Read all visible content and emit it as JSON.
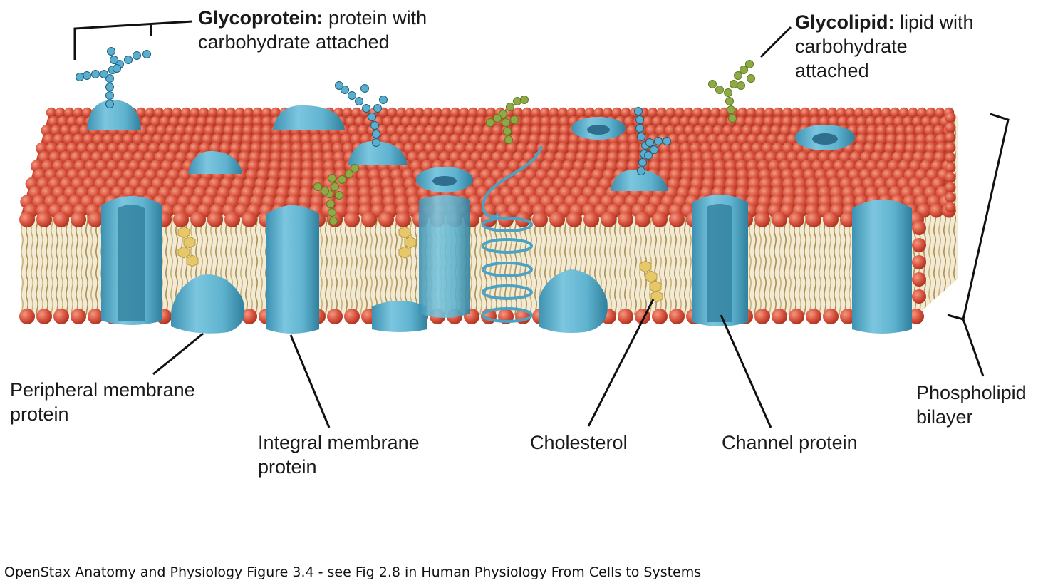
{
  "labels": {
    "glycoprotein": {
      "term": "Glycoprotein:",
      "desc_line1": "protein with",
      "desc_line2": "carbohydrate attached"
    },
    "glycolipid": {
      "term": "Glycolipid:",
      "desc_line1": "lipid with",
      "desc_line2": "carbohydrate",
      "desc_line3": "attached"
    },
    "peripheral": {
      "line1": "Peripheral membrane",
      "line2": "protein"
    },
    "integral": {
      "line1": "Integral membrane",
      "line2": "protein"
    },
    "cholesterol": "Cholesterol",
    "channel": "Channel protein",
    "phospholipid": {
      "line1": "Phospholipid",
      "line2": "bilayer"
    }
  },
  "caption": "OpenStax Anatomy and Physiology Figure 3.4  - see Fig 2.8 in Human Physiology From Cells to Systems",
  "colors": {
    "head": "#d9533f",
    "head_dark": "#a8321f",
    "tail": "#d8c48a",
    "protein": "#5fb3cf",
    "protein_dark": "#2f7f9d",
    "glyco_chain": "#5aaed0",
    "lipid_chain": "#8faa45",
    "cholesterol": "#e6c86b",
    "leader": "#111111"
  }
}
